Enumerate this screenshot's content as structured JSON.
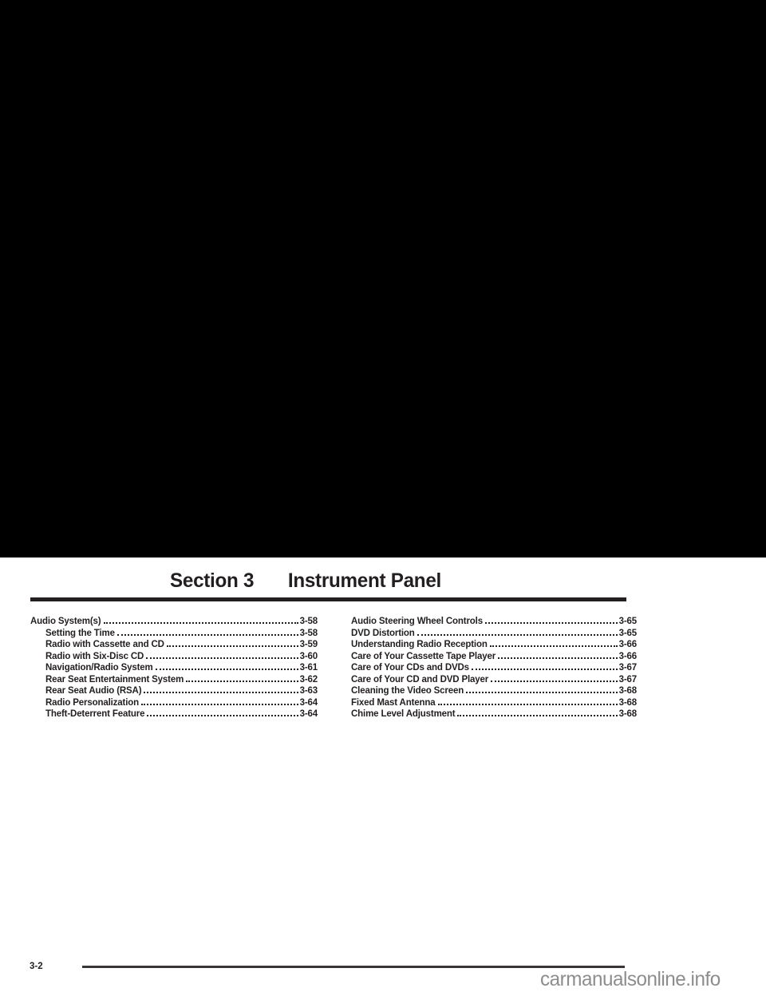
{
  "header": {
    "section_label": "Section 3",
    "title": "Instrument Panel"
  },
  "toc": {
    "left": [
      {
        "label": "Audio System(s)",
        "page": "3-58",
        "level": 0
      },
      {
        "label": "Setting the Time",
        "page": "3-58",
        "level": 1
      },
      {
        "label": "Radio with Cassette and CD",
        "page": "3-59",
        "level": 1
      },
      {
        "label": "Radio with Six-Disc CD",
        "page": "3-60",
        "level": 1
      },
      {
        "label": "Navigation/Radio System",
        "page": "3-61",
        "level": 1
      },
      {
        "label": "Rear Seat Entertainment System",
        "page": "3-62",
        "level": 1
      },
      {
        "label": "Rear Seat Audio (RSA)",
        "page": "3-63",
        "level": 1
      },
      {
        "label": "Radio Personalization",
        "page": "3-64",
        "level": 1
      },
      {
        "label": "Theft-Deterrent Feature",
        "page": "3-64",
        "level": 1
      }
    ],
    "right": [
      {
        "label": "Audio Steering Wheel Controls",
        "page": "3-65",
        "level": 0
      },
      {
        "label": "DVD Distortion",
        "page": "3-65",
        "level": 0
      },
      {
        "label": "Understanding Radio Reception",
        "page": "3-66",
        "level": 0
      },
      {
        "label": "Care of Your Cassette Tape Player",
        "page": "3-66",
        "level": 0
      },
      {
        "label": "Care of Your CDs and DVDs",
        "page": "3-67",
        "level": 0
      },
      {
        "label": "Care of Your CD and DVD Player",
        "page": "3-67",
        "level": 0
      },
      {
        "label": "Cleaning the Video Screen",
        "page": "3-68",
        "level": 0
      },
      {
        "label": "Fixed Mast Antenna",
        "page": "3-68",
        "level": 0
      },
      {
        "label": "Chime Level Adjustment",
        "page": "3-68",
        "level": 0
      }
    ]
  },
  "footer": {
    "page_number": "3-2",
    "watermark": "carmanualsonline.info"
  },
  "colors": {
    "ink": "#231f20",
    "top_block": "#000000",
    "watermark_gray": "#8d8d8d",
    "page_bg": "#ffffff"
  }
}
